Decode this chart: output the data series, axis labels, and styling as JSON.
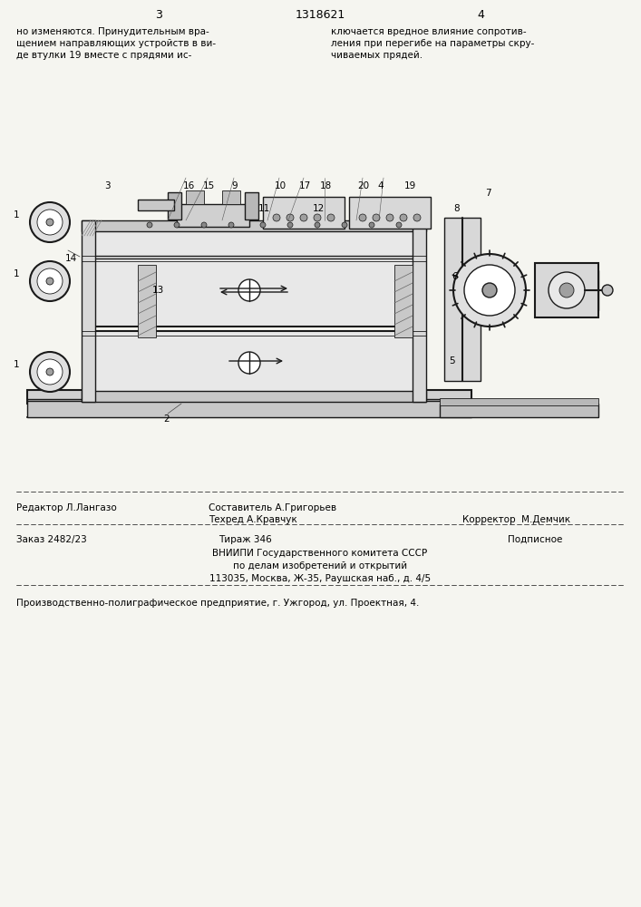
{
  "bg_color": "#f5f5f0",
  "page_width": 7.07,
  "page_height": 10.0,
  "header": {
    "page_left": "3",
    "patent_num": "1318621",
    "page_right": "4"
  },
  "top_text_left": "но изменяются. Принудительным вра-\nщением направляющих устройств в ви-\nде втулки 19 вместе с прядями ис-",
  "top_text_right": "ключается вредное влияние сопротив-\nления при перегибе на параметры скру-\nчиваемых прядей.",
  "footer_line1_left": "Редактор Л.Лангазо",
  "footer_line1_center1": "Составитель А.Григорьев",
  "footer_line1_center2": "Техред А.Кравчук",
  "footer_line1_right": "Корректор  М.Демчик",
  "footer_line2_left": "Заказ 2482/23",
  "footer_line2_center": "Тираж 346",
  "footer_line2_right": "Подписное",
  "footer_line3": "ВНИИПИ Государственного комитета СССР",
  "footer_line4": "по делам изобретений и открытий",
  "footer_line5": "113035, Москва, Ж-35, Раушская наб., д. 4/5",
  "footer_bottom": "Производственно-полиграфическое предприятие, г. Ужгород, ул. Проектная, 4."
}
